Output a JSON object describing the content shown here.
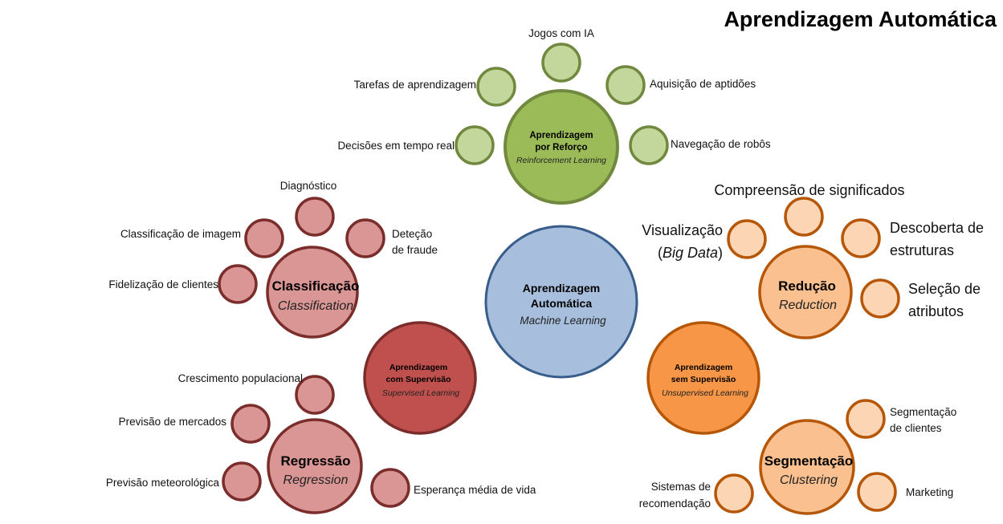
{
  "title": "Aprendizagem Automática",
  "colors": {
    "core_fill": "#a7bedd",
    "core_stroke": "#385d8a",
    "rl_fill": "#9bbb59",
    "rl_stroke": "#71893f",
    "rl_leaf": "#c3d69b",
    "sup_fill": "#c0504d",
    "sup_stroke": "#7a2d2b",
    "sup_sub": "#d99694",
    "sup_stroke2": "#7a2d2b",
    "unsup_fill": "#f79646",
    "unsup_stroke": "#b65708",
    "unsup_sub": "#fac090",
    "unsup_leaf": "#fcd5b5"
  },
  "core": {
    "title_line1": "Aprendizagem",
    "title_line2": "Automática",
    "subtitle": "Machine Learning"
  },
  "reinforcement": {
    "title_line1": "Aprendizagem",
    "title_line2": "por Reforço",
    "subtitle": "Reinforcement Learning",
    "leaves": {
      "jogos": "Jogos com IA",
      "tarefas": "Tarefas de aprendizagem",
      "aquisicao": "Aquisição de aptidões",
      "decisoes": "Decisões em tempo real",
      "navegacao": "Navegação de robôs"
    }
  },
  "supervised": {
    "title_line1": "Aprendizagem",
    "title_line2": "com Supervisão",
    "subtitle": "Supervised Learning",
    "classification": {
      "title": "Classificação",
      "subtitle": "Classification",
      "leaves": {
        "diagnostico": "Diagnóstico",
        "imagem": "Classificação de imagem",
        "fraude_1": "Deteção",
        "fraude_2": "de fraude",
        "fidelizacao": "Fidelização de clientes"
      }
    },
    "regression": {
      "title": "Regressão",
      "subtitle": "Regression",
      "leaves": {
        "crescimento": "Crescimento populacional",
        "mercados": "Previsão de mercados",
        "meteorologica": "Previsão meteorológica",
        "esperanca": "Esperança média de vida"
      }
    }
  },
  "unsupervised": {
    "title_line1": "Aprendizagem",
    "title_line2": "sem Supervisão",
    "subtitle": "Unsupervised Learning",
    "reduction": {
      "title": "Redução",
      "subtitle": "Reduction",
      "leaves": {
        "compreensao": "Compreensão de significados",
        "visualizacao_1": "Visualização",
        "visualizacao_2_open": "(",
        "visualizacao_2_italic": "Big Data",
        "visualizacao_2_close": ")",
        "descoberta_1": "Descoberta de",
        "descoberta_2": "estruturas",
        "selecao_1": "Seleção de",
        "selecao_2": "atributos"
      }
    },
    "clustering": {
      "title": "Segmentação",
      "subtitle": "Clustering",
      "leaves": {
        "segmentacao_1": "Segmentação",
        "segmentacao_2": "de clientes",
        "sistemas_1": "Sistemas de",
        "sistemas_2": "recomendação",
        "marketing": "Marketing"
      }
    }
  }
}
